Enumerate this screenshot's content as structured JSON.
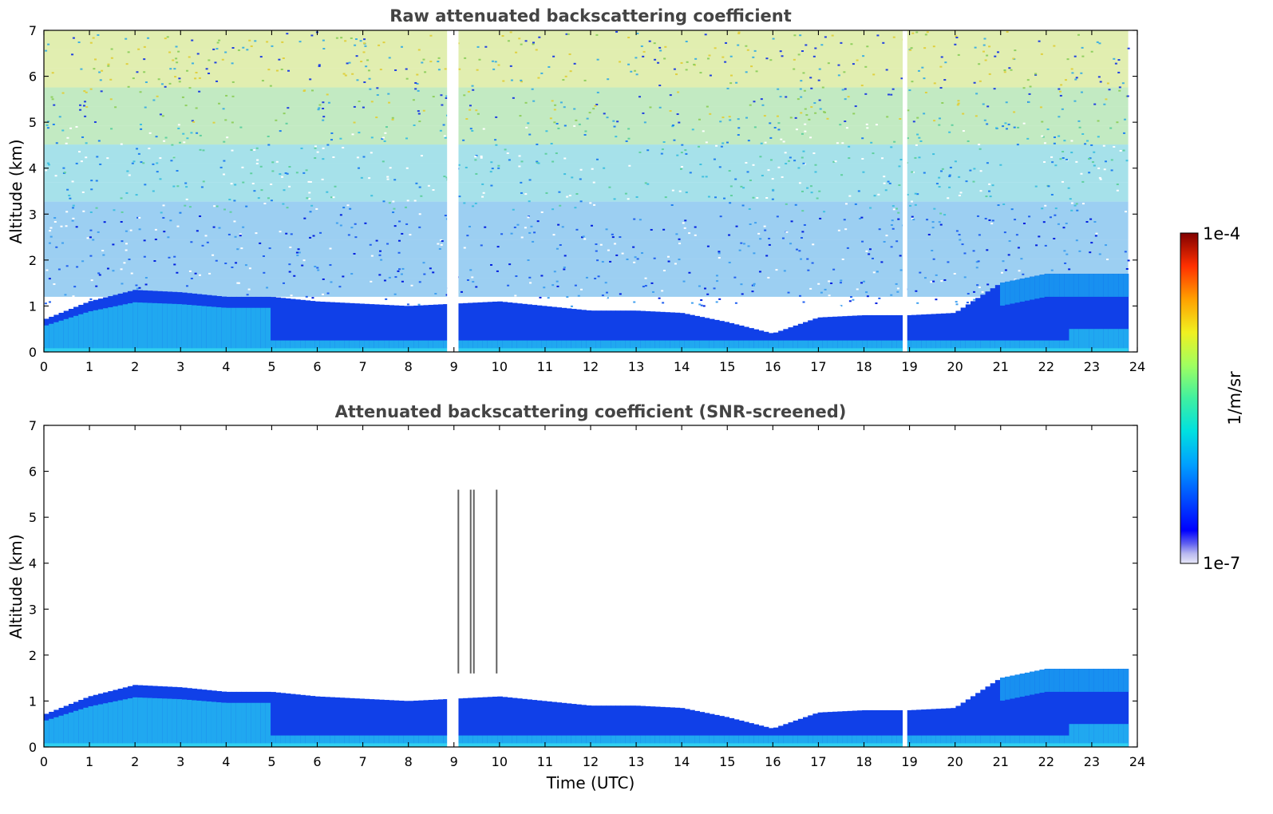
{
  "chart_data": [
    {
      "type": "heatmap",
      "title": "Raw attenuated backscattering coefficient",
      "xlabel": "",
      "ylabel": "Altitude (km)",
      "xlim": [
        0,
        24
      ],
      "ylim": [
        0,
        7
      ],
      "xticks": [
        "0",
        "1",
        "2",
        "3",
        "4",
        "5",
        "6",
        "7",
        "8",
        "9",
        "10",
        "11",
        "12",
        "13",
        "14",
        "15",
        "16",
        "17",
        "18",
        "19",
        "20",
        "21",
        "22",
        "23",
        "24"
      ],
      "yticks": [
        "0",
        "1",
        "2",
        "3",
        "4",
        "5",
        "6",
        "7"
      ],
      "data_end_hour": 23.8,
      "data_gaps_hours": [
        [
          8.85,
          9.1
        ],
        [
          18.85,
          18.95
        ]
      ],
      "boundary_layer_top_km": [
        [
          0,
          0.7
        ],
        [
          1,
          1.1
        ],
        [
          2,
          1.35
        ],
        [
          3,
          1.3
        ],
        [
          4,
          1.2
        ],
        [
          5,
          1.2
        ],
        [
          6,
          1.1
        ],
        [
          7,
          1.05
        ],
        [
          8,
          1.0
        ],
        [
          9,
          1.05
        ],
        [
          10,
          1.1
        ],
        [
          11,
          1.0
        ],
        [
          12,
          0.9
        ],
        [
          13,
          0.9
        ],
        [
          14,
          0.85
        ],
        [
          15,
          0.65
        ],
        [
          16,
          0.4
        ],
        [
          17,
          0.75
        ],
        [
          18,
          0.8
        ],
        [
          19,
          0.8
        ],
        [
          20,
          0.85
        ],
        [
          21,
          1.5
        ],
        [
          22,
          1.7
        ],
        [
          23,
          1.7
        ],
        [
          23.8,
          1.7
        ]
      ]
    },
    {
      "type": "heatmap",
      "title": "Attenuated backscattering coefficient (SNR-screened)",
      "xlabel": "Time (UTC)",
      "ylabel": "Altitude (km)",
      "xlim": [
        0,
        24
      ],
      "ylim": [
        0,
        7
      ],
      "xticks": [
        "0",
        "1",
        "2",
        "3",
        "4",
        "5",
        "6",
        "7",
        "8",
        "9",
        "10",
        "11",
        "12",
        "13",
        "14",
        "15",
        "16",
        "17",
        "18",
        "19",
        "20",
        "21",
        "22",
        "23",
        "24"
      ],
      "yticks": [
        "0",
        "1",
        "2",
        "3",
        "4",
        "5",
        "6",
        "7"
      ],
      "data_end_hour": 23.8,
      "data_gaps_hours": [
        [
          8.85,
          9.1
        ],
        [
          18.85,
          18.95
        ]
      ],
      "boundary_layer_top_km": [
        [
          0,
          0.7
        ],
        [
          1,
          1.1
        ],
        [
          2,
          1.35
        ],
        [
          3,
          1.3
        ],
        [
          4,
          1.2
        ],
        [
          5,
          1.2
        ],
        [
          6,
          1.1
        ],
        [
          7,
          1.05
        ],
        [
          8,
          1.0
        ],
        [
          9,
          1.05
        ],
        [
          10,
          1.1
        ],
        [
          11,
          1.0
        ],
        [
          12,
          0.9
        ],
        [
          13,
          0.9
        ],
        [
          14,
          0.85
        ],
        [
          15,
          0.65
        ],
        [
          16,
          0.4
        ],
        [
          17,
          0.75
        ],
        [
          18,
          0.8
        ],
        [
          19,
          0.8
        ],
        [
          20,
          0.85
        ],
        [
          21,
          1.5
        ],
        [
          22,
          1.7
        ],
        [
          23,
          1.7
        ],
        [
          23.8,
          1.7
        ]
      ]
    }
  ],
  "colorbar": {
    "label": "1/m/sr",
    "max_label": "1e-4",
    "min_label": "1e-7",
    "colormap": [
      "#e8e8f8",
      "#b0b0f0",
      "#0000ff",
      "#0060ff",
      "#00c0ff",
      "#20e0c0",
      "#80ff80",
      "#e0ff40",
      "#ffd000",
      "#ff7000",
      "#ff2000",
      "#a00000",
      "#600000"
    ]
  }
}
